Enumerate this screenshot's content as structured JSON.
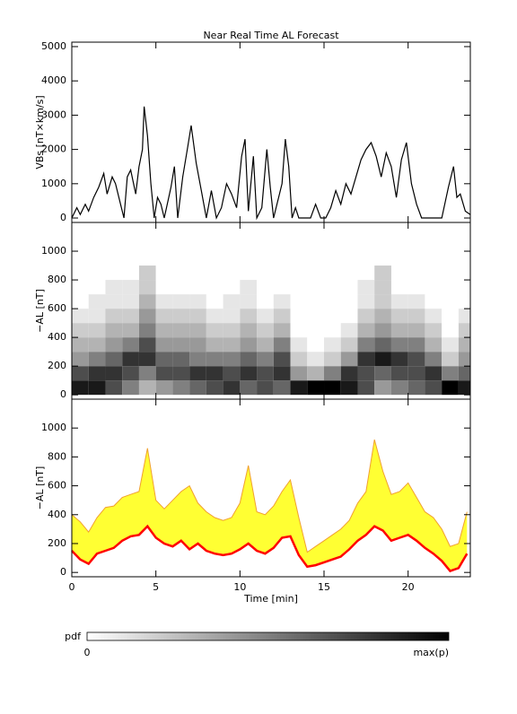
{
  "chart_data": [
    {
      "type": "line",
      "title": "Near Real Time AL Forecast",
      "ylabel": "VBs [nT×km/s]",
      "color": "#000000",
      "xlim": [
        0,
        23.7
      ],
      "ylim": [
        -130,
        5130
      ],
      "yticks": [
        0,
        1000,
        2000,
        3000,
        4000,
        5000
      ],
      "x": [
        0,
        0.3,
        0.5,
        0.8,
        1.0,
        1.3,
        1.6,
        1.9,
        2.1,
        2.4,
        2.6,
        2.9,
        3.1,
        3.3,
        3.5,
        3.8,
        4.0,
        4.2,
        4.3,
        4.5,
        4.7,
        4.9,
        5.1,
        5.3,
        5.5,
        5.9,
        6.1,
        6.3,
        6.6,
        6.9,
        7.1,
        7.4,
        7.7,
        8.0,
        8.3,
        8.6,
        8.9,
        9.2,
        9.5,
        9.8,
        10.1,
        10.3,
        10.5,
        10.8,
        11.0,
        11.3,
        11.6,
        11.8,
        12.0,
        12.5,
        12.7,
        12.9,
        13.1,
        13.3,
        13.5,
        14.2,
        14.5,
        14.8,
        15.1,
        15.4,
        15.7,
        16.0,
        16.3,
        16.6,
        16.9,
        17.2,
        17.5,
        17.8,
        18.1,
        18.4,
        18.7,
        19.0,
        19.3,
        19.6,
        19.9,
        20.2,
        20.5,
        20.8,
        21.1,
        22.0,
        22.4,
        22.7,
        22.9,
        23.1,
        23.4,
        23.7
      ],
      "values": [
        0,
        300,
        100,
        400,
        200,
        600,
        900,
        1300,
        700,
        1200,
        1000,
        400,
        0,
        1200,
        1400,
        700,
        1500,
        2000,
        3250,
        2400,
        1000,
        0,
        600,
        400,
        0,
        900,
        1500,
        0,
        1200,
        2100,
        2700,
        1600,
        800,
        0,
        800,
        0,
        300,
        1000,
        700,
        300,
        1800,
        2300,
        200,
        1800,
        0,
        300,
        2000,
        900,
        0,
        1000,
        2300,
        1500,
        0,
        300,
        0,
        0,
        400,
        0,
        0,
        300,
        800,
        400,
        1000,
        700,
        1200,
        1700,
        2000,
        2200,
        1800,
        1200,
        1900,
        1500,
        600,
        1700,
        2200,
        1000,
        400,
        0,
        0,
        0,
        900,
        1500,
        600,
        700,
        200,
        100
      ]
    },
    {
      "type": "heatmap",
      "ylabel": "−AL [nT]",
      "xlim": [
        0,
        23.7
      ],
      "ylim": [
        -30,
        1200
      ],
      "yticks": [
        0,
        200,
        400,
        600,
        800,
        1000
      ],
      "xbins": [
        0,
        1,
        2,
        3,
        4,
        5,
        6,
        7,
        8,
        9,
        10,
        11,
        12,
        13,
        14,
        15,
        16,
        17,
        18,
        19,
        20,
        21,
        22,
        23,
        24
      ],
      "ybins": [
        0,
        100,
        200,
        300,
        400,
        500,
        600,
        700,
        800,
        900
      ],
      "z": [
        [
          0.9,
          0.9,
          0.7,
          0.5,
          0.3,
          0.4,
          0.5,
          0.6,
          0.7,
          0.8,
          0.6,
          0.7,
          0.6,
          0.9,
          1,
          1,
          0.9,
          0.7,
          0.4,
          0.5,
          0.6,
          0.7,
          1,
          0.9
        ],
        [
          0.7,
          0.8,
          0.8,
          0.7,
          0.5,
          0.7,
          0.7,
          0.8,
          0.8,
          0.7,
          0.8,
          0.7,
          0.8,
          0.4,
          0.3,
          0.5,
          0.8,
          0.7,
          0.6,
          0.7,
          0.7,
          0.8,
          0.5,
          0.6
        ],
        [
          0.4,
          0.5,
          0.6,
          0.8,
          0.8,
          0.6,
          0.6,
          0.5,
          0.5,
          0.5,
          0.6,
          0.5,
          0.7,
          0.2,
          0.1,
          0.2,
          0.4,
          0.8,
          0.9,
          0.8,
          0.7,
          0.5,
          0.2,
          0.4
        ],
        [
          0.3,
          0.3,
          0.4,
          0.5,
          0.7,
          0.4,
          0.4,
          0.4,
          0.3,
          0.3,
          0.4,
          0.3,
          0.5,
          0.1,
          0,
          0.1,
          0.2,
          0.5,
          0.6,
          0.5,
          0.5,
          0.3,
          0.1,
          0.3
        ],
        [
          0.2,
          0.2,
          0.3,
          0.3,
          0.5,
          0.3,
          0.3,
          0.3,
          0.2,
          0.2,
          0.3,
          0.2,
          0.3,
          0,
          0,
          0,
          0.1,
          0.3,
          0.4,
          0.3,
          0.3,
          0.2,
          0,
          0.2
        ],
        [
          0.1,
          0.1,
          0.2,
          0.2,
          0.4,
          0.2,
          0.2,
          0.2,
          0.1,
          0.1,
          0.2,
          0.1,
          0.2,
          0,
          0,
          0,
          0,
          0.2,
          0.3,
          0.2,
          0.2,
          0.1,
          0,
          0.1
        ],
        [
          0,
          0.1,
          0.1,
          0.1,
          0.3,
          0.1,
          0.1,
          0.1,
          0,
          0.1,
          0.1,
          0,
          0.1,
          0,
          0,
          0,
          0,
          0.1,
          0.2,
          0.1,
          0.1,
          0,
          0,
          0
        ],
        [
          0,
          0,
          0.1,
          0.1,
          0.2,
          0,
          0,
          0,
          0,
          0,
          0.1,
          0,
          0,
          0,
          0,
          0,
          0,
          0.1,
          0.2,
          0,
          0,
          0,
          0,
          0
        ],
        [
          0,
          0,
          0,
          0,
          0.2,
          0,
          0,
          0,
          0,
          0,
          0,
          0,
          0,
          0,
          0,
          0,
          0,
          0,
          0.2,
          0,
          0,
          0,
          0,
          0
        ]
      ]
    },
    {
      "type": "band",
      "ylabel": "−AL [nT]",
      "xlabel": "Time [min]",
      "xlim": [
        0,
        23.7
      ],
      "ylim": [
        -30,
        1200
      ],
      "yticks": [
        0,
        200,
        400,
        600,
        800,
        1000
      ],
      "xticks": [
        0,
        5,
        10,
        15,
        20
      ],
      "x": [
        0,
        0.5,
        1,
        1.5,
        2,
        2.5,
        3,
        3.5,
        4,
        4.5,
        5,
        5.5,
        6,
        6.5,
        7,
        7.5,
        8,
        8.5,
        9,
        9.5,
        10,
        10.5,
        11,
        11.5,
        12,
        12.5,
        13,
        13.5,
        14,
        14.5,
        15,
        15.5,
        16,
        16.5,
        17,
        17.5,
        18,
        18.5,
        19,
        19.5,
        20,
        20.5,
        21,
        21.5,
        22,
        22.5,
        23,
        23.5
      ],
      "series": [
        {
          "color": "#f0a030",
          "fill": "#ffff33",
          "values": [
            400,
            350,
            280,
            380,
            450,
            460,
            520,
            540,
            560,
            860,
            500,
            440,
            500,
            560,
            600,
            480,
            420,
            380,
            360,
            380,
            480,
            740,
            420,
            400,
            460,
            560,
            640,
            380,
            140,
            180,
            220,
            260,
            300,
            360,
            480,
            560,
            920,
            700,
            540,
            560,
            620,
            520,
            420,
            380,
            300,
            180,
            200,
            420
          ]
        },
        {
          "color": "#ff0000",
          "values": [
            150,
            90,
            60,
            130,
            150,
            170,
            220,
            250,
            260,
            320,
            240,
            200,
            180,
            220,
            160,
            200,
            150,
            130,
            120,
            130,
            160,
            200,
            150,
            130,
            170,
            240,
            250,
            120,
            40,
            50,
            70,
            90,
            110,
            160,
            220,
            260,
            320,
            290,
            220,
            240,
            260,
            220,
            170,
            130,
            80,
            10,
            30,
            130
          ]
        }
      ]
    }
  ],
  "colorbar": {
    "label": "pdf",
    "min_label": "0",
    "max_label": "max(p)"
  }
}
